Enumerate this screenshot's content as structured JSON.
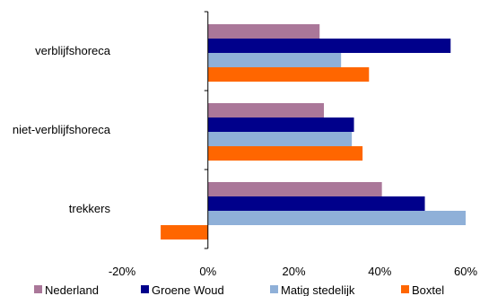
{
  "chart_data": {
    "type": "bar",
    "orientation": "horizontal",
    "categories": [
      "verblijfshoreca",
      "niet-verblijfshoreca",
      "trekkers"
    ],
    "series": [
      {
        "name": "Nederland",
        "color": "#AA7799",
        "values": [
          26,
          27,
          40.5
        ]
      },
      {
        "name": "Groene Woud",
        "color": "#00008B",
        "values": [
          56.5,
          34,
          50.5
        ]
      },
      {
        "name": "Matig stedelijk",
        "color": "#8FB0D8",
        "values": [
          31,
          33.5,
          60
        ]
      },
      {
        "name": "Boxtel",
        "color": "#FF6600",
        "values": [
          37.5,
          36,
          -11
        ]
      }
    ],
    "x_ticks": [
      "-20%",
      "0%",
      "20%",
      "40%",
      "60%"
    ],
    "x_tick_values": [
      -20,
      0,
      20,
      40,
      60
    ],
    "xlim": [
      -20,
      60
    ],
    "grid": false,
    "legend_position": "bottom"
  }
}
